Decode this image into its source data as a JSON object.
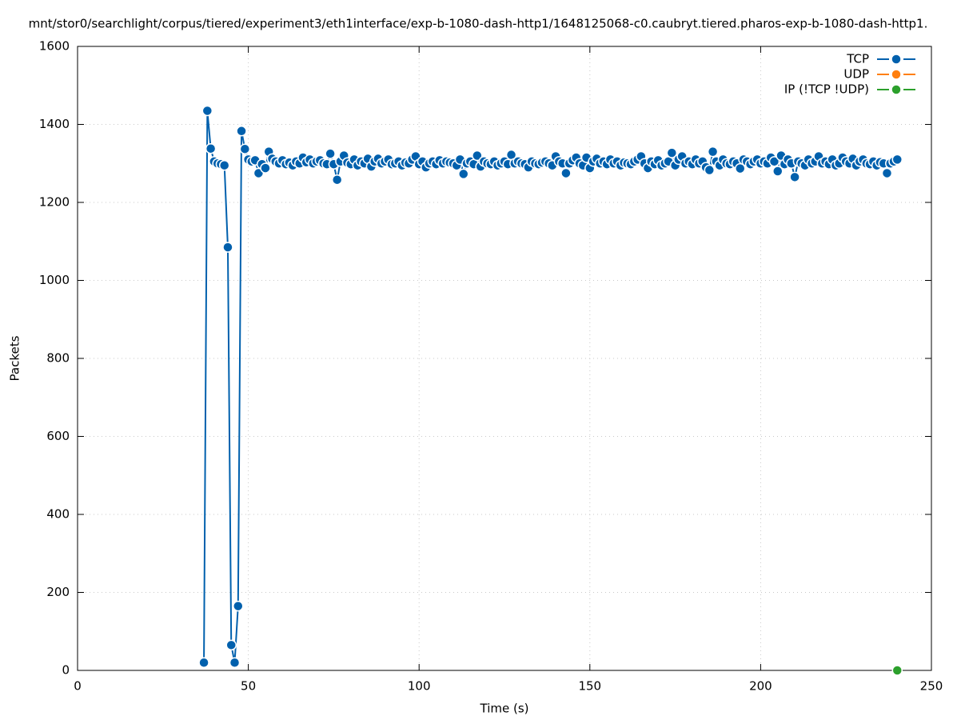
{
  "chart_data": {
    "type": "line",
    "title": "mnt/stor0/searchlight/corpus/tiered/experiment3/eth1interface/exp-b-1080-dash-http1/1648125068-c0.caubryt.tiered.pharos-exp-b-1080-dash-http1.",
    "x_label": "Time (s)",
    "y_label": "Packets",
    "xlim": [
      0,
      250
    ],
    "xticks": [
      0,
      50,
      100,
      150,
      200,
      250
    ],
    "ylim": [
      0,
      1600
    ],
    "yticks": [
      0,
      200,
      400,
      600,
      800,
      1000,
      1200,
      1400,
      1600
    ],
    "grid": true,
    "legend": "top-right",
    "series": [
      {
        "name": "TCP",
        "color": "#0060ad",
        "x": [
          37,
          38,
          39,
          40,
          41,
          42,
          43,
          44,
          45,
          46,
          47,
          48,
          49,
          50,
          51,
          52,
          53,
          54,
          55,
          56,
          57,
          58,
          59,
          60,
          61,
          62,
          63,
          64,
          65,
          66,
          67,
          68,
          69,
          70,
          71,
          72,
          73,
          74,
          75,
          76,
          77,
          78,
          79,
          80,
          81,
          82,
          83,
          84,
          85,
          86,
          87,
          88,
          89,
          90,
          91,
          92,
          93,
          94,
          95,
          96,
          97,
          98,
          99,
          100,
          101,
          102,
          103,
          104,
          105,
          106,
          107,
          108,
          109,
          110,
          111,
          112,
          113,
          114,
          115,
          116,
          117,
          118,
          119,
          120,
          121,
          122,
          123,
          124,
          125,
          126,
          127,
          128,
          129,
          130,
          131,
          132,
          133,
          134,
          135,
          136,
          137,
          138,
          139,
          140,
          141,
          142,
          143,
          144,
          145,
          146,
          147,
          148,
          149,
          150,
          151,
          152,
          153,
          154,
          155,
          156,
          157,
          158,
          159,
          160,
          161,
          162,
          163,
          164,
          165,
          166,
          167,
          168,
          169,
          170,
          171,
          172,
          173,
          174,
          175,
          176,
          177,
          178,
          179,
          180,
          181,
          182,
          183,
          184,
          185,
          186,
          187,
          188,
          189,
          190,
          191,
          192,
          193,
          194,
          195,
          196,
          197,
          198,
          199,
          200,
          201,
          202,
          203,
          204,
          205,
          206,
          207,
          208,
          209,
          210,
          211,
          212,
          213,
          214,
          215,
          216,
          217,
          218,
          219,
          220,
          221,
          222,
          223,
          224,
          225,
          226,
          227,
          228,
          229,
          230,
          231,
          232,
          233,
          234,
          235,
          236,
          237,
          238,
          239,
          240
        ],
        "values": [
          20,
          1435,
          1338,
          1305,
          1300,
          1298,
          1295,
          1085,
          65,
          20,
          165,
          1383,
          1337,
          1310,
          1305,
          1308,
          1275,
          1298,
          1288,
          1330,
          1312,
          1305,
          1300,
          1308,
          1298,
          1302,
          1295,
          1305,
          1300,
          1315,
          1303,
          1310,
          1300,
          1305,
          1308,
          1300,
          1298,
          1325,
          1298,
          1258,
          1305,
          1320,
          1302,
          1298,
          1310,
          1295,
          1305,
          1300,
          1312,
          1292,
          1305,
          1312,
          1300,
          1305,
          1310,
          1298,
          1300,
          1305,
          1295,
          1302,
          1300,
          1310,
          1318,
          1298,
          1305,
          1290,
          1300,
          1305,
          1298,
          1308,
          1300,
          1305,
          1302,
          1300,
          1295,
          1310,
          1273,
          1300,
          1305,
          1298,
          1320,
          1292,
          1305,
          1300,
          1298,
          1305,
          1295,
          1300,
          1305,
          1298,
          1322,
          1300,
          1305,
          1300,
          1298,
          1290,
          1305,
          1300,
          1298,
          1302,
          1305,
          1300,
          1295,
          1318,
          1305,
          1300,
          1275,
          1300,
          1308,
          1315,
          1300,
          1295,
          1315,
          1288,
          1305,
          1312,
          1300,
          1305,
          1298,
          1310,
          1300,
          1305,
          1295,
          1302,
          1300,
          1298,
          1305,
          1310,
          1318,
          1300,
          1288,
          1305,
          1298,
          1308,
          1295,
          1300,
          1305,
          1327,
          1295,
          1310,
          1318,
          1300,
          1305,
          1298,
          1310,
          1300,
          1305,
          1290,
          1283,
          1330,
          1305,
          1295,
          1310,
          1300,
          1298,
          1305,
          1300,
          1287,
          1310,
          1305,
          1298,
          1305,
          1310,
          1300,
          1305,
          1300,
          1315,
          1305,
          1280,
          1320,
          1298,
          1310,
          1300,
          1265,
          1305,
          1300,
          1295,
          1310,
          1300,
          1305,
          1318,
          1300,
          1305,
          1298,
          1310,
          1295,
          1300,
          1315,
          1305,
          1300,
          1312,
          1295,
          1305,
          1310,
          1300,
          1298,
          1305,
          1295,
          1303,
          1300,
          1275,
          1300,
          1305,
          1310
        ]
      },
      {
        "name": "UDP",
        "color": "#ff7f0e",
        "x": [],
        "values": []
      },
      {
        "name": "IP (!TCP  !UDP)",
        "color": "#2ca02c",
        "x": [
          240
        ],
        "values": [
          0
        ]
      }
    ]
  }
}
